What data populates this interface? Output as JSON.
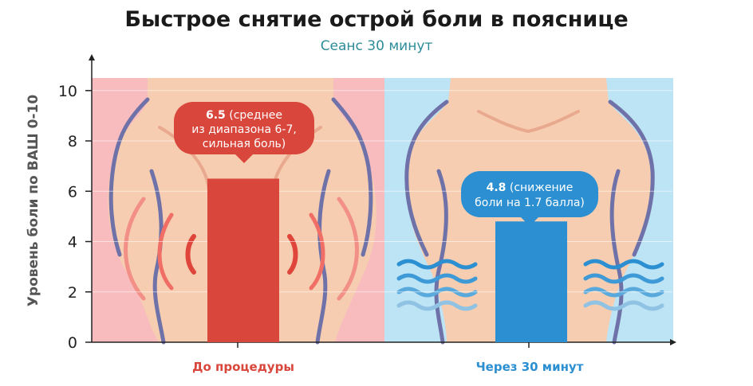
{
  "chart_data": {
    "type": "bar",
    "title": "Быстрое снятие острой боли в пояснице",
    "subtitle": "Сеанс 30 минут",
    "ylabel": "Уровень боли по ВАШ 0-10",
    "xlabel": "",
    "ylim": [
      0,
      10.5
    ],
    "yticks": [
      0,
      2,
      4,
      6,
      8,
      10
    ],
    "grid": true,
    "categories": [
      "До процедуры",
      "Через 30 минут"
    ],
    "values": [
      6.5,
      4.8
    ],
    "colors": {
      "before": "#d9463c",
      "after": "#2b8fd1",
      "before_bg": "#f8bcbf",
      "after_bg": "#bde4f5",
      "before_label": "#d9463c",
      "after_label": "#2b8fd1"
    },
    "annotations": [
      {
        "value": "6.5",
        "text_line1": " (среднее",
        "text_line2": "из диапазона 6-7,",
        "text_line3": "сильная боль)"
      },
      {
        "value": "4.8",
        "text_line1": " (снижение",
        "text_line2": "боли на 1.7 балла)",
        "text_line3": ""
      }
    ]
  }
}
